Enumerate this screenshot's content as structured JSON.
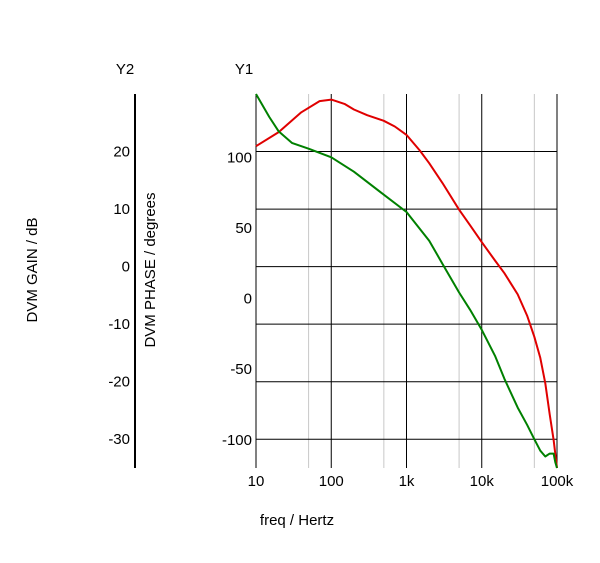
{
  "chart_data": {
    "type": "line",
    "xlabel": "freq / Hertz",
    "x_scale": "log",
    "xlim": [
      10,
      100000
    ],
    "x_ticks": [
      "10",
      "100",
      "1k",
      "10k",
      "100k"
    ],
    "y1": {
      "axis_title": "Y1",
      "label": "DVM PHASE / degrees",
      "ylim": [
        -120,
        145
      ],
      "ticks": [
        "100",
        "50",
        "0",
        "-50",
        "-100"
      ]
    },
    "y2": {
      "axis_title": "Y2",
      "label": "DVM GAIN / dB",
      "ylim": [
        -35,
        30
      ],
      "ticks": [
        "20",
        "10",
        "0",
        "-10",
        "-20",
        "-30"
      ]
    },
    "grid": true,
    "series": [
      {
        "axis": "y1",
        "color": "#e00000",
        "x": [
          10,
          20,
          40,
          70,
          100,
          150,
          200,
          300,
          500,
          700,
          1000,
          1500,
          2000,
          3000,
          5000,
          7000,
          10000,
          15000,
          20000,
          30000,
          40000,
          50000,
          60000,
          70000,
          80000,
          90000,
          95000,
          100000
        ],
        "y": [
          108,
          118,
          132,
          140,
          141,
          138,
          134,
          130,
          126,
          122,
          116,
          105,
          96,
          82,
          63,
          52,
          40,
          27,
          18,
          3,
          -12,
          -27,
          -42,
          -60,
          -82,
          -100,
          -110,
          -120
        ]
      },
      {
        "axis": "y2",
        "color": "#008000",
        "x": [
          10,
          15,
          20,
          30,
          50,
          100,
          200,
          500,
          1000,
          2000,
          3000,
          5000,
          7000,
          10000,
          15000,
          20000,
          30000,
          40000,
          50000,
          60000,
          70000,
          80000,
          90000,
          95000,
          100000
        ],
        "y": [
          30,
          26,
          23.5,
          21.5,
          20.5,
          19,
          16.5,
          12.5,
          9.5,
          4.5,
          0.5,
          -4.5,
          -7.5,
          -11,
          -15.5,
          -19.5,
          -24.5,
          -27.5,
          -30,
          -32,
          -33,
          -32.5,
          -32.5,
          -34,
          -35
        ]
      }
    ]
  }
}
